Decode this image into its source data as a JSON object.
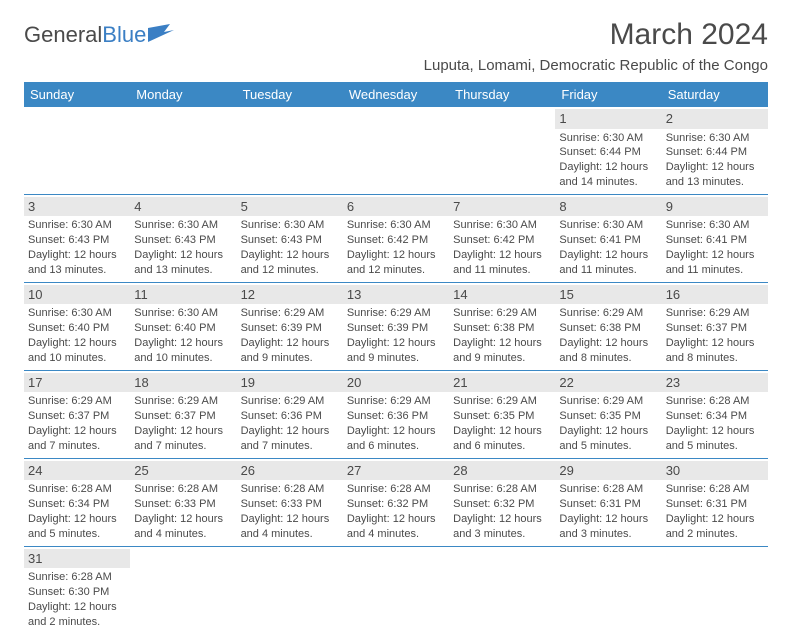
{
  "logo": {
    "text_general": "General",
    "text_blue": "Blue"
  },
  "title": "March 2024",
  "subtitle": "Luputa, Lomami, Democratic Republic of the Congo",
  "colors": {
    "header_bg": "#3b88c4",
    "daynum_bg": "#e8e8e8",
    "text": "#4a4a4a"
  },
  "weekdays": [
    "Sunday",
    "Monday",
    "Tuesday",
    "Wednesday",
    "Thursday",
    "Friday",
    "Saturday"
  ],
  "weeks": [
    [
      null,
      null,
      null,
      null,
      null,
      {
        "n": "1",
        "sr": "Sunrise: 6:30 AM",
        "ss": "Sunset: 6:44 PM",
        "d1": "Daylight: 12 hours",
        "d2": "and 14 minutes."
      },
      {
        "n": "2",
        "sr": "Sunrise: 6:30 AM",
        "ss": "Sunset: 6:44 PM",
        "d1": "Daylight: 12 hours",
        "d2": "and 13 minutes."
      }
    ],
    [
      {
        "n": "3",
        "sr": "Sunrise: 6:30 AM",
        "ss": "Sunset: 6:43 PM",
        "d1": "Daylight: 12 hours",
        "d2": "and 13 minutes."
      },
      {
        "n": "4",
        "sr": "Sunrise: 6:30 AM",
        "ss": "Sunset: 6:43 PM",
        "d1": "Daylight: 12 hours",
        "d2": "and 13 minutes."
      },
      {
        "n": "5",
        "sr": "Sunrise: 6:30 AM",
        "ss": "Sunset: 6:43 PM",
        "d1": "Daylight: 12 hours",
        "d2": "and 12 minutes."
      },
      {
        "n": "6",
        "sr": "Sunrise: 6:30 AM",
        "ss": "Sunset: 6:42 PM",
        "d1": "Daylight: 12 hours",
        "d2": "and 12 minutes."
      },
      {
        "n": "7",
        "sr": "Sunrise: 6:30 AM",
        "ss": "Sunset: 6:42 PM",
        "d1": "Daylight: 12 hours",
        "d2": "and 11 minutes."
      },
      {
        "n": "8",
        "sr": "Sunrise: 6:30 AM",
        "ss": "Sunset: 6:41 PM",
        "d1": "Daylight: 12 hours",
        "d2": "and 11 minutes."
      },
      {
        "n": "9",
        "sr": "Sunrise: 6:30 AM",
        "ss": "Sunset: 6:41 PM",
        "d1": "Daylight: 12 hours",
        "d2": "and 11 minutes."
      }
    ],
    [
      {
        "n": "10",
        "sr": "Sunrise: 6:30 AM",
        "ss": "Sunset: 6:40 PM",
        "d1": "Daylight: 12 hours",
        "d2": "and 10 minutes."
      },
      {
        "n": "11",
        "sr": "Sunrise: 6:30 AM",
        "ss": "Sunset: 6:40 PM",
        "d1": "Daylight: 12 hours",
        "d2": "and 10 minutes."
      },
      {
        "n": "12",
        "sr": "Sunrise: 6:29 AM",
        "ss": "Sunset: 6:39 PM",
        "d1": "Daylight: 12 hours",
        "d2": "and 9 minutes."
      },
      {
        "n": "13",
        "sr": "Sunrise: 6:29 AM",
        "ss": "Sunset: 6:39 PM",
        "d1": "Daylight: 12 hours",
        "d2": "and 9 minutes."
      },
      {
        "n": "14",
        "sr": "Sunrise: 6:29 AM",
        "ss": "Sunset: 6:38 PM",
        "d1": "Daylight: 12 hours",
        "d2": "and 9 minutes."
      },
      {
        "n": "15",
        "sr": "Sunrise: 6:29 AM",
        "ss": "Sunset: 6:38 PM",
        "d1": "Daylight: 12 hours",
        "d2": "and 8 minutes."
      },
      {
        "n": "16",
        "sr": "Sunrise: 6:29 AM",
        "ss": "Sunset: 6:37 PM",
        "d1": "Daylight: 12 hours",
        "d2": "and 8 minutes."
      }
    ],
    [
      {
        "n": "17",
        "sr": "Sunrise: 6:29 AM",
        "ss": "Sunset: 6:37 PM",
        "d1": "Daylight: 12 hours",
        "d2": "and 7 minutes."
      },
      {
        "n": "18",
        "sr": "Sunrise: 6:29 AM",
        "ss": "Sunset: 6:37 PM",
        "d1": "Daylight: 12 hours",
        "d2": "and 7 minutes."
      },
      {
        "n": "19",
        "sr": "Sunrise: 6:29 AM",
        "ss": "Sunset: 6:36 PM",
        "d1": "Daylight: 12 hours",
        "d2": "and 7 minutes."
      },
      {
        "n": "20",
        "sr": "Sunrise: 6:29 AM",
        "ss": "Sunset: 6:36 PM",
        "d1": "Daylight: 12 hours",
        "d2": "and 6 minutes."
      },
      {
        "n": "21",
        "sr": "Sunrise: 6:29 AM",
        "ss": "Sunset: 6:35 PM",
        "d1": "Daylight: 12 hours",
        "d2": "and 6 minutes."
      },
      {
        "n": "22",
        "sr": "Sunrise: 6:29 AM",
        "ss": "Sunset: 6:35 PM",
        "d1": "Daylight: 12 hours",
        "d2": "and 5 minutes."
      },
      {
        "n": "23",
        "sr": "Sunrise: 6:28 AM",
        "ss": "Sunset: 6:34 PM",
        "d1": "Daylight: 12 hours",
        "d2": "and 5 minutes."
      }
    ],
    [
      {
        "n": "24",
        "sr": "Sunrise: 6:28 AM",
        "ss": "Sunset: 6:34 PM",
        "d1": "Daylight: 12 hours",
        "d2": "and 5 minutes."
      },
      {
        "n": "25",
        "sr": "Sunrise: 6:28 AM",
        "ss": "Sunset: 6:33 PM",
        "d1": "Daylight: 12 hours",
        "d2": "and 4 minutes."
      },
      {
        "n": "26",
        "sr": "Sunrise: 6:28 AM",
        "ss": "Sunset: 6:33 PM",
        "d1": "Daylight: 12 hours",
        "d2": "and 4 minutes."
      },
      {
        "n": "27",
        "sr": "Sunrise: 6:28 AM",
        "ss": "Sunset: 6:32 PM",
        "d1": "Daylight: 12 hours",
        "d2": "and 4 minutes."
      },
      {
        "n": "28",
        "sr": "Sunrise: 6:28 AM",
        "ss": "Sunset: 6:32 PM",
        "d1": "Daylight: 12 hours",
        "d2": "and 3 minutes."
      },
      {
        "n": "29",
        "sr": "Sunrise: 6:28 AM",
        "ss": "Sunset: 6:31 PM",
        "d1": "Daylight: 12 hours",
        "d2": "and 3 minutes."
      },
      {
        "n": "30",
        "sr": "Sunrise: 6:28 AM",
        "ss": "Sunset: 6:31 PM",
        "d1": "Daylight: 12 hours",
        "d2": "and 2 minutes."
      }
    ],
    [
      {
        "n": "31",
        "sr": "Sunrise: 6:28 AM",
        "ss": "Sunset: 6:30 PM",
        "d1": "Daylight: 12 hours",
        "d2": "and 2 minutes."
      },
      null,
      null,
      null,
      null,
      null,
      null
    ]
  ]
}
